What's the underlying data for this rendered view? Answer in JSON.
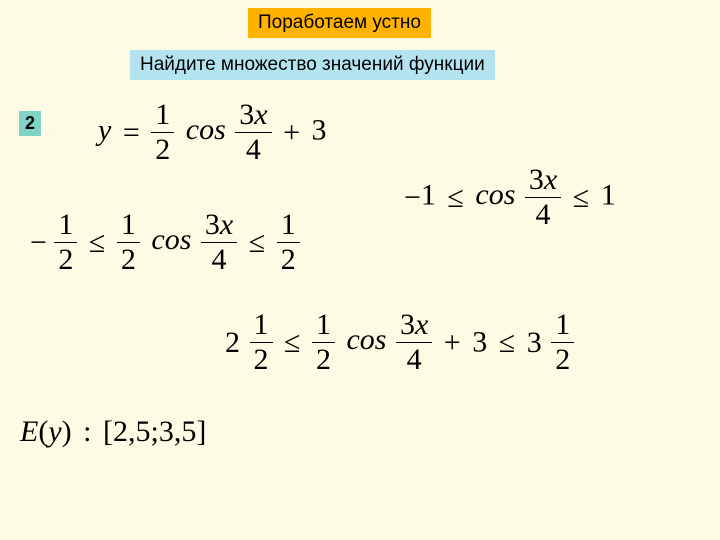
{
  "title": "Поработаем устно",
  "subtitle": "Найдите множество значений функции",
  "problem_number": "2",
  "eq1": {
    "y": "y",
    "eq": "=",
    "half_n": "1",
    "half_d": "2",
    "cos": "cos",
    "arg_n": "3",
    "arg_x": "x",
    "arg_d": "4",
    "plus": "+",
    "c": "3"
  },
  "eq2": {
    "m1": "−",
    "one_a": "1",
    "le1": "≤",
    "cos": "cos",
    "arg_n": "3",
    "arg_x": "x",
    "arg_d": "4",
    "le2": "≤",
    "one_b": "1"
  },
  "eq3": {
    "m": "−",
    "half1_n": "1",
    "half1_d": "2",
    "le1": "≤",
    "half2_n": "1",
    "half2_d": "2",
    "cos": "cos",
    "arg_n": "3",
    "arg_x": "x",
    "arg_d": "4",
    "le2": "≤",
    "half3_n": "1",
    "half3_d": "2"
  },
  "eq4": {
    "w1": "2",
    "f1_n": "1",
    "f1_d": "2",
    "le1": "≤",
    "half_n": "1",
    "half_d": "2",
    "cos": "cos",
    "arg_n": "3",
    "arg_x": "x",
    "arg_d": "4",
    "plus": "+",
    "c": "3",
    "le2": "≤",
    "w2": "3",
    "f2_n": "1",
    "f2_d": "2"
  },
  "eq5": {
    "E": "E",
    "lp": "(",
    "y": "y",
    "rp": ")",
    "colon": ":",
    "interval": "[2,5;3,5]"
  },
  "colors": {
    "bg": "#fdfbe3",
    "title_bg": "#ffb300",
    "subtitle_bg": "#b4e3f0",
    "num_bg": "#7fd3c8",
    "text": "#000000"
  }
}
